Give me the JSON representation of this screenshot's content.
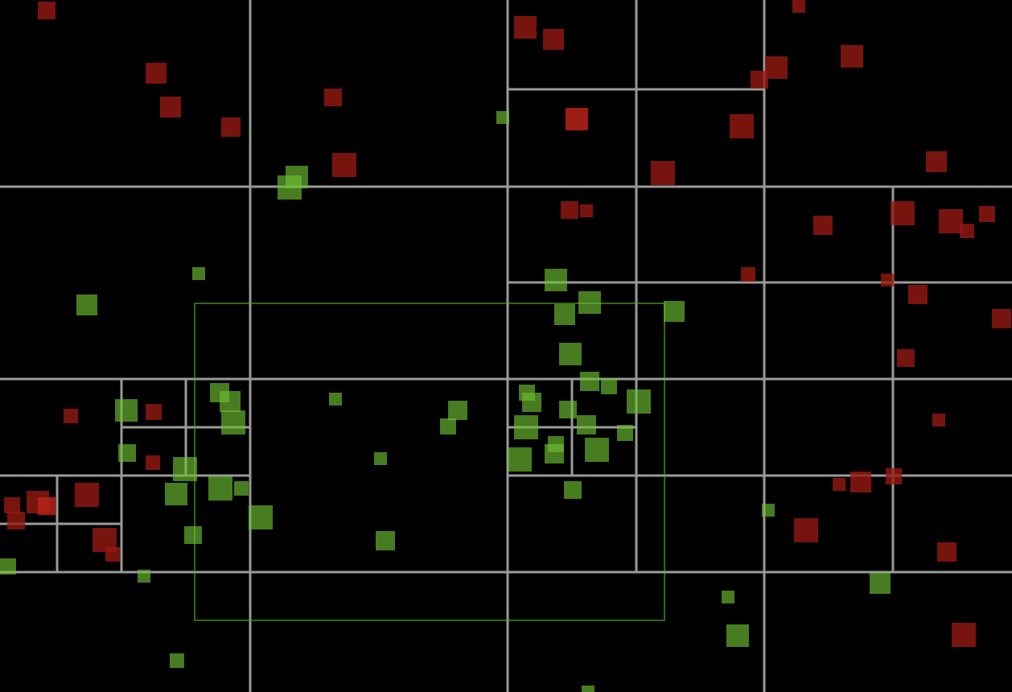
{
  "colors": {
    "background": "#000000",
    "quadtree_lines": "#9a9a9a",
    "query_rect": "#4caf2a",
    "green_particle": "rgba(110,190,50,0.65)",
    "red_particle": "rgba(150,25,18,0.8)",
    "highlight_red_particle": "#b82218"
  }
}
